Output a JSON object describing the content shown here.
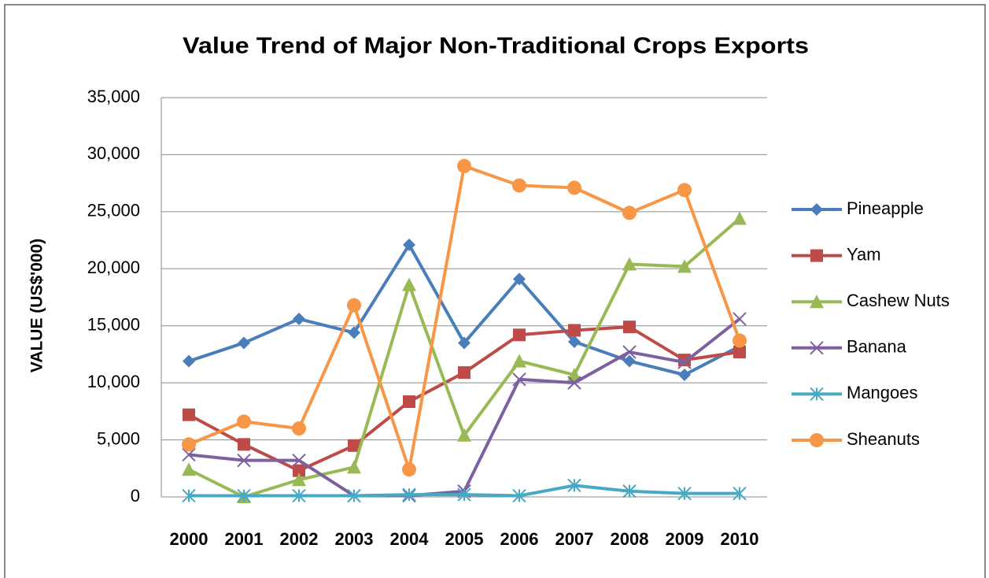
{
  "chart_data": {
    "type": "line",
    "title": "Value Trend of Major Non-Traditional Crops Exports",
    "y_label": "VALUE (US$'000)",
    "categories": [
      "2000",
      "2001",
      "2002",
      "2003",
      "2004",
      "2005",
      "2006",
      "2007",
      "2008",
      "2009",
      "2010"
    ],
    "ylim": [
      0,
      35000
    ],
    "yticks": [
      0,
      {
        "value": 5000,
        "label": "5,000"
      },
      {
        "value": 10000,
        "label": "10,000"
      },
      {
        "value": 15000,
        "label": "15,000"
      },
      {
        "value": 20000,
        "label": "20,000"
      },
      {
        "value": 25000,
        "label": "25,000"
      },
      {
        "value": 30000,
        "label": "30,000"
      },
      {
        "value": 35000,
        "label": "35,000"
      }
    ],
    "grid": true,
    "legend": "right",
    "series": [
      {
        "name": "Pineapple",
        "color": "#4a7ebb",
        "marker": "diamond",
        "values": [
          11900,
          13500,
          15600,
          14400,
          22100,
          13500,
          19100,
          13600,
          11900,
          10700,
          13200
        ]
      },
      {
        "name": "Yam",
        "color": "#be4b48",
        "marker": "square",
        "values": [
          7200,
          4600,
          2300,
          4500,
          8350,
          10900,
          14200,
          14600,
          14900,
          12000,
          12700
        ]
      },
      {
        "name": "Cashew Nuts",
        "color": "#98b954",
        "marker": "triangle",
        "values": [
          2400,
          0,
          1500,
          2600,
          18600,
          5400,
          11900,
          10700,
          20400,
          20200,
          24400
        ]
      },
      {
        "name": "Banana",
        "color": "#7d60a0",
        "marker": "x",
        "values": [
          3700,
          3200,
          3200,
          100,
          100,
          500,
          10300,
          10000,
          12700,
          11800,
          15600
        ]
      },
      {
        "name": "Mangoes",
        "color": "#46aac5",
        "marker": "star",
        "values": [
          100,
          100,
          100,
          100,
          200,
          200,
          100,
          1000,
          500,
          300,
          300
        ]
      },
      {
        "name": "Sheanuts",
        "color": "#f79646",
        "marker": "circle",
        "values": [
          4600,
          6600,
          6000,
          16800,
          2400,
          29000,
          27300,
          27100,
          24900,
          26900,
          13700
        ]
      }
    ]
  }
}
